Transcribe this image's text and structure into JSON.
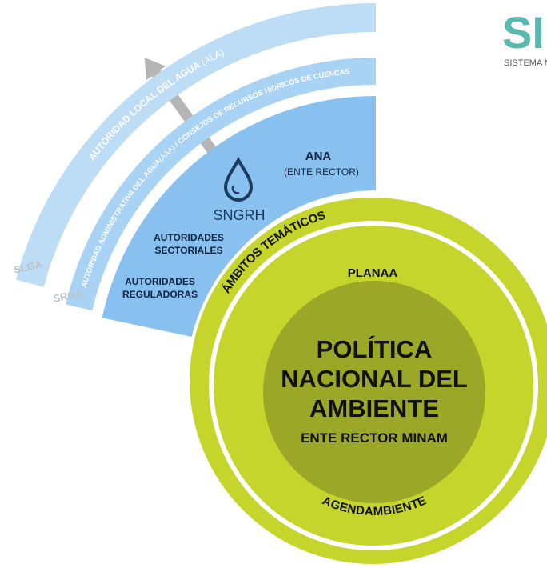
{
  "logo": {
    "text": "SI",
    "subtitle": "SISTEMA NA"
  },
  "bands": {
    "slga": {
      "label": "SLGA",
      "name": "AUTORIDAD LOCAL DEL AGUA",
      "abbr": "(ALA)"
    },
    "srga": {
      "label": "SRGA",
      "name": "AUTORIDAD ADMINISTRATIVA DEL AGUA",
      "abbr": "(AAA)",
      "rest": "/ CONSEJOS DE RECURSOS HÍDRICOS DE CUENCAS"
    },
    "sngrh": {
      "label": "SNGRH",
      "ana": "ANA",
      "ana_sub": "(ENTE RECTOR)",
      "sectoral": [
        "AUTORIDADES",
        "SECTORIALES"
      ],
      "regulatory": [
        "AUTORIDADES",
        "REGULADORAS"
      ]
    }
  },
  "circle": {
    "ring": "ÁMBITOS TEMÁTICOS",
    "top": "PLANAA",
    "bottom": "AGENDAMBIENTE",
    "center": [
      "POLÍTICA",
      "NACIONAL DEL",
      "AMBIENTE"
    ],
    "center_sub": "ENTE RECTOR MINAM"
  }
}
